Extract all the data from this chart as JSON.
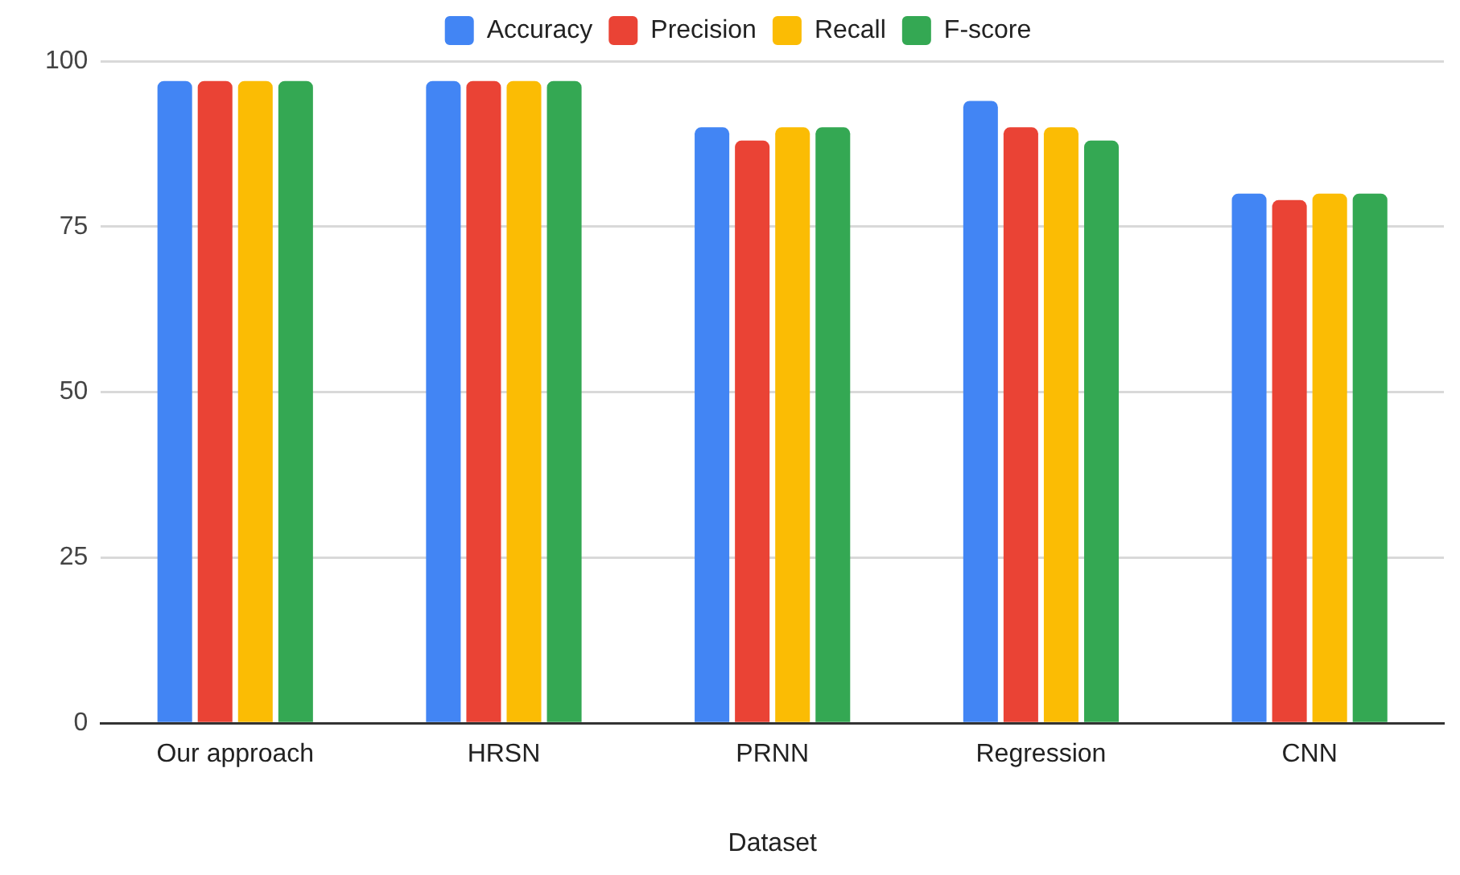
{
  "chart_data": {
    "type": "bar",
    "xlabel": "Dataset",
    "categories": [
      "Our approach",
      "HRSN",
      "PRNN",
      "Regression",
      "CNN"
    ],
    "series": [
      {
        "name": "Accuracy",
        "color": "#4285f4",
        "values": [
          97,
          97,
          90,
          94,
          80
        ]
      },
      {
        "name": "Precision",
        "color": "#ea4335",
        "values": [
          97,
          97,
          88,
          90,
          79
        ]
      },
      {
        "name": "Recall",
        "color": "#fbbc04",
        "values": [
          97,
          97,
          90,
          90,
          80
        ]
      },
      {
        "name": "F-score",
        "color": "#34a853",
        "values": [
          97,
          97,
          90,
          88,
          80
        ]
      }
    ],
    "ylim": [
      0,
      100
    ],
    "yticks": [
      0,
      25,
      50,
      75,
      100
    ],
    "grid": "y",
    "legend": "top"
  }
}
